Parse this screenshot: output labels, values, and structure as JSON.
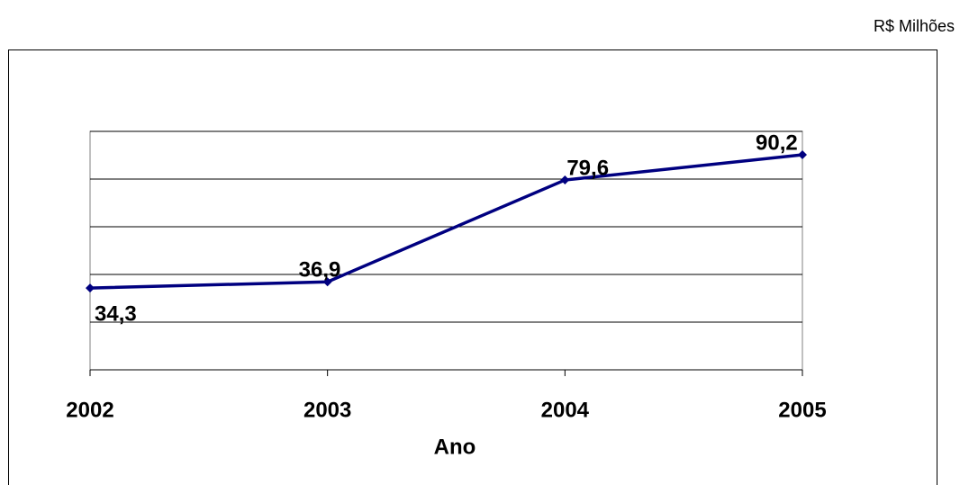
{
  "chart_data": {
    "type": "line",
    "unit_label": "R$ Milhões",
    "x_label": "Ano",
    "categories": [
      "2002",
      "2003",
      "2004",
      "2005"
    ],
    "values": [
      34.3,
      36.9,
      79.6,
      90.2
    ],
    "value_labels": [
      "34,3",
      "36,9",
      "79,6",
      "90,2"
    ],
    "color": "#000080",
    "ylim": [
      0,
      100
    ],
    "yticks": [
      0,
      20,
      40,
      60,
      80,
      100
    ],
    "grid": true
  }
}
